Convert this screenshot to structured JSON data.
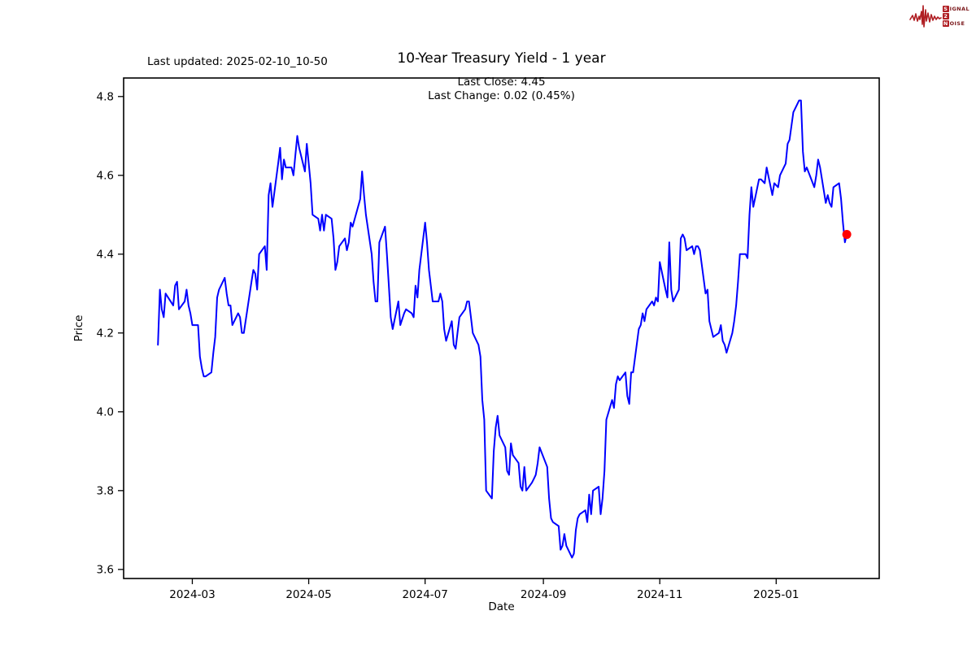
{
  "header": {
    "last_updated": "Last updated: 2025-02-10_10-50"
  },
  "logo": {
    "signal_box": "S",
    "signal_rest": "IGNAL",
    "middle_box": "2",
    "noise_box": "N",
    "noise_rest": "OISE",
    "color": "#b01e23"
  },
  "chart_data": {
    "type": "line",
    "title": "10-Year Treasury Yield - 1 year",
    "subtitle_lines": [
      "Last Close: 4.45",
      "Last Change: 0.02 (0.45%)"
    ],
    "xlabel": "Date",
    "ylabel": "Price",
    "grid": false,
    "legend": "none",
    "line_color": "#0000ff",
    "marker_color": "#ff0000",
    "xlim": [
      "2024-01-25",
      "2025-02-24"
    ],
    "ylim": [
      3.577,
      4.847
    ],
    "y_ticks": [
      {
        "label": "3.6",
        "value": 3.6
      },
      {
        "label": "3.8",
        "value": 3.8
      },
      {
        "label": "4.0",
        "value": 4.0
      },
      {
        "label": "4.2",
        "value": 4.2
      },
      {
        "label": "4.4",
        "value": 4.4
      },
      {
        "label": "4.6",
        "value": 4.6
      },
      {
        "label": "4.8",
        "value": 4.8
      }
    ],
    "x_ticks": [
      {
        "label": "2024-03",
        "date": "2024-03-01"
      },
      {
        "label": "2024-05",
        "date": "2024-05-01"
      },
      {
        "label": "2024-07",
        "date": "2024-07-01"
      },
      {
        "label": "2024-09",
        "date": "2024-09-01"
      },
      {
        "label": "2024-11",
        "date": "2024-11-01"
      },
      {
        "label": "2025-01",
        "date": "2025-01-01"
      }
    ],
    "series": [
      {
        "name": "10-Year Treasury Yield",
        "points": [
          [
            "2024-02-12",
            4.17
          ],
          [
            "2024-02-13",
            4.31
          ],
          [
            "2024-02-14",
            4.26
          ],
          [
            "2024-02-15",
            4.24
          ],
          [
            "2024-02-16",
            4.3
          ],
          [
            "2024-02-20",
            4.27
          ],
          [
            "2024-02-21",
            4.32
          ],
          [
            "2024-02-22",
            4.33
          ],
          [
            "2024-02-23",
            4.26
          ],
          [
            "2024-02-26",
            4.28
          ],
          [
            "2024-02-27",
            4.31
          ],
          [
            "2024-02-28",
            4.27
          ],
          [
            "2024-02-29",
            4.25
          ],
          [
            "2024-03-01",
            4.22
          ],
          [
            "2024-03-04",
            4.22
          ],
          [
            "2024-03-05",
            4.14
          ],
          [
            "2024-03-06",
            4.11
          ],
          [
            "2024-03-07",
            4.09
          ],
          [
            "2024-03-08",
            4.09
          ],
          [
            "2024-03-11",
            4.1
          ],
          [
            "2024-03-12",
            4.15
          ],
          [
            "2024-03-13",
            4.19
          ],
          [
            "2024-03-14",
            4.29
          ],
          [
            "2024-03-15",
            4.31
          ],
          [
            "2024-03-18",
            4.34
          ],
          [
            "2024-03-19",
            4.3
          ],
          [
            "2024-03-20",
            4.27
          ],
          [
            "2024-03-21",
            4.27
          ],
          [
            "2024-03-22",
            4.22
          ],
          [
            "2024-03-25",
            4.25
          ],
          [
            "2024-03-26",
            4.24
          ],
          [
            "2024-03-27",
            4.2
          ],
          [
            "2024-03-28",
            4.2
          ],
          [
            "2024-04-01",
            4.33
          ],
          [
            "2024-04-02",
            4.36
          ],
          [
            "2024-04-03",
            4.35
          ],
          [
            "2024-04-04",
            4.31
          ],
          [
            "2024-04-05",
            4.4
          ],
          [
            "2024-04-08",
            4.42
          ],
          [
            "2024-04-09",
            4.36
          ],
          [
            "2024-04-10",
            4.55
          ],
          [
            "2024-04-11",
            4.58
          ],
          [
            "2024-04-12",
            4.52
          ],
          [
            "2024-04-15",
            4.63
          ],
          [
            "2024-04-16",
            4.67
          ],
          [
            "2024-04-17",
            4.59
          ],
          [
            "2024-04-18",
            4.64
          ],
          [
            "2024-04-19",
            4.62
          ],
          [
            "2024-04-22",
            4.62
          ],
          [
            "2024-04-23",
            4.6
          ],
          [
            "2024-04-24",
            4.65
          ],
          [
            "2024-04-25",
            4.7
          ],
          [
            "2024-04-26",
            4.67
          ],
          [
            "2024-04-29",
            4.61
          ],
          [
            "2024-04-30",
            4.68
          ],
          [
            "2024-05-01",
            4.63
          ],
          [
            "2024-05-02",
            4.58
          ],
          [
            "2024-05-03",
            4.5
          ],
          [
            "2024-05-06",
            4.49
          ],
          [
            "2024-05-07",
            4.46
          ],
          [
            "2024-05-08",
            4.5
          ],
          [
            "2024-05-09",
            4.46
          ],
          [
            "2024-05-10",
            4.5
          ],
          [
            "2024-05-13",
            4.49
          ],
          [
            "2024-05-14",
            4.44
          ],
          [
            "2024-05-15",
            4.36
          ],
          [
            "2024-05-16",
            4.38
          ],
          [
            "2024-05-17",
            4.42
          ],
          [
            "2024-05-20",
            4.44
          ],
          [
            "2024-05-21",
            4.41
          ],
          [
            "2024-05-22",
            4.43
          ],
          [
            "2024-05-23",
            4.48
          ],
          [
            "2024-05-24",
            4.47
          ],
          [
            "2024-05-28",
            4.54
          ],
          [
            "2024-05-29",
            4.61
          ],
          [
            "2024-05-30",
            4.55
          ],
          [
            "2024-05-31",
            4.5
          ],
          [
            "2024-06-03",
            4.4
          ],
          [
            "2024-06-04",
            4.33
          ],
          [
            "2024-06-05",
            4.28
          ],
          [
            "2024-06-06",
            4.28
          ],
          [
            "2024-06-07",
            4.43
          ],
          [
            "2024-06-10",
            4.47
          ],
          [
            "2024-06-11",
            4.4
          ],
          [
            "2024-06-12",
            4.32
          ],
          [
            "2024-06-13",
            4.24
          ],
          [
            "2024-06-14",
            4.21
          ],
          [
            "2024-06-17",
            4.28
          ],
          [
            "2024-06-18",
            4.22
          ],
          [
            "2024-06-20",
            4.25
          ],
          [
            "2024-06-21",
            4.26
          ],
          [
            "2024-06-24",
            4.25
          ],
          [
            "2024-06-25",
            4.24
          ],
          [
            "2024-06-26",
            4.32
          ],
          [
            "2024-06-27",
            4.29
          ],
          [
            "2024-06-28",
            4.36
          ],
          [
            "2024-07-01",
            4.48
          ],
          [
            "2024-07-02",
            4.43
          ],
          [
            "2024-07-03",
            4.36
          ],
          [
            "2024-07-05",
            4.28
          ],
          [
            "2024-07-08",
            4.28
          ],
          [
            "2024-07-09",
            4.3
          ],
          [
            "2024-07-10",
            4.28
          ],
          [
            "2024-07-11",
            4.21
          ],
          [
            "2024-07-12",
            4.18
          ],
          [
            "2024-07-15",
            4.23
          ],
          [
            "2024-07-16",
            4.17
          ],
          [
            "2024-07-17",
            4.16
          ],
          [
            "2024-07-18",
            4.2
          ],
          [
            "2024-07-19",
            4.24
          ],
          [
            "2024-07-22",
            4.26
          ],
          [
            "2024-07-23",
            4.28
          ],
          [
            "2024-07-24",
            4.28
          ],
          [
            "2024-07-25",
            4.24
          ],
          [
            "2024-07-26",
            4.2
          ],
          [
            "2024-07-29",
            4.17
          ],
          [
            "2024-07-30",
            4.14
          ],
          [
            "2024-07-31",
            4.03
          ],
          [
            "2024-08-01",
            3.98
          ],
          [
            "2024-08-02",
            3.8
          ],
          [
            "2024-08-05",
            3.78
          ],
          [
            "2024-08-06",
            3.9
          ],
          [
            "2024-08-07",
            3.96
          ],
          [
            "2024-08-08",
            3.99
          ],
          [
            "2024-08-09",
            3.94
          ],
          [
            "2024-08-12",
            3.91
          ],
          [
            "2024-08-13",
            3.85
          ],
          [
            "2024-08-14",
            3.84
          ],
          [
            "2024-08-15",
            3.92
          ],
          [
            "2024-08-16",
            3.89
          ],
          [
            "2024-08-19",
            3.87
          ],
          [
            "2024-08-20",
            3.81
          ],
          [
            "2024-08-21",
            3.8
          ],
          [
            "2024-08-22",
            3.86
          ],
          [
            "2024-08-23",
            3.8
          ],
          [
            "2024-08-26",
            3.82
          ],
          [
            "2024-08-27",
            3.83
          ],
          [
            "2024-08-28",
            3.84
          ],
          [
            "2024-08-29",
            3.87
          ],
          [
            "2024-08-30",
            3.91
          ],
          [
            "2024-09-03",
            3.86
          ],
          [
            "2024-09-04",
            3.78
          ],
          [
            "2024-09-05",
            3.73
          ],
          [
            "2024-09-06",
            3.72
          ],
          [
            "2024-09-09",
            3.71
          ],
          [
            "2024-09-10",
            3.65
          ],
          [
            "2024-09-11",
            3.66
          ],
          [
            "2024-09-12",
            3.69
          ],
          [
            "2024-09-13",
            3.66
          ],
          [
            "2024-09-16",
            3.63
          ],
          [
            "2024-09-17",
            3.64
          ],
          [
            "2024-09-18",
            3.7
          ],
          [
            "2024-09-19",
            3.73
          ],
          [
            "2024-09-20",
            3.74
          ],
          [
            "2024-09-23",
            3.75
          ],
          [
            "2024-09-24",
            3.72
          ],
          [
            "2024-09-25",
            3.79
          ],
          [
            "2024-09-26",
            3.74
          ],
          [
            "2024-09-27",
            3.8
          ],
          [
            "2024-09-30",
            3.81
          ],
          [
            "2024-10-01",
            3.74
          ],
          [
            "2024-10-02",
            3.78
          ],
          [
            "2024-10-03",
            3.85
          ],
          [
            "2024-10-04",
            3.98
          ],
          [
            "2024-10-07",
            4.03
          ],
          [
            "2024-10-08",
            4.01
          ],
          [
            "2024-10-09",
            4.07
          ],
          [
            "2024-10-10",
            4.09
          ],
          [
            "2024-10-11",
            4.08
          ],
          [
            "2024-10-14",
            4.1
          ],
          [
            "2024-10-15",
            4.04
          ],
          [
            "2024-10-16",
            4.02
          ],
          [
            "2024-10-17",
            4.1
          ],
          [
            "2024-10-18",
            4.1
          ],
          [
            "2024-10-21",
            4.21
          ],
          [
            "2024-10-22",
            4.22
          ],
          [
            "2024-10-23",
            4.25
          ],
          [
            "2024-10-24",
            4.23
          ],
          [
            "2024-10-25",
            4.26
          ],
          [
            "2024-10-28",
            4.28
          ],
          [
            "2024-10-29",
            4.27
          ],
          [
            "2024-10-30",
            4.29
          ],
          [
            "2024-10-31",
            4.28
          ],
          [
            "2024-11-01",
            4.38
          ],
          [
            "2024-11-04",
            4.31
          ],
          [
            "2024-11-05",
            4.29
          ],
          [
            "2024-11-06",
            4.43
          ],
          [
            "2024-11-07",
            4.31
          ],
          [
            "2024-11-08",
            4.28
          ],
          [
            "2024-11-11",
            4.31
          ],
          [
            "2024-11-12",
            4.44
          ],
          [
            "2024-11-13",
            4.45
          ],
          [
            "2024-11-14",
            4.44
          ],
          [
            "2024-11-15",
            4.41
          ],
          [
            "2024-11-18",
            4.42
          ],
          [
            "2024-11-19",
            4.4
          ],
          [
            "2024-11-20",
            4.42
          ],
          [
            "2024-11-21",
            4.42
          ],
          [
            "2024-11-22",
            4.41
          ],
          [
            "2024-11-25",
            4.3
          ],
          [
            "2024-11-26",
            4.31
          ],
          [
            "2024-11-27",
            4.23
          ],
          [
            "2024-11-29",
            4.19
          ],
          [
            "2024-12-02",
            4.2
          ],
          [
            "2024-12-03",
            4.22
          ],
          [
            "2024-12-04",
            4.18
          ],
          [
            "2024-12-05",
            4.17
          ],
          [
            "2024-12-06",
            4.15
          ],
          [
            "2024-12-09",
            4.2
          ],
          [
            "2024-12-10",
            4.23
          ],
          [
            "2024-12-11",
            4.27
          ],
          [
            "2024-12-12",
            4.33
          ],
          [
            "2024-12-13",
            4.4
          ],
          [
            "2024-12-16",
            4.4
          ],
          [
            "2024-12-17",
            4.39
          ],
          [
            "2024-12-18",
            4.5
          ],
          [
            "2024-12-19",
            4.57
          ],
          [
            "2024-12-20",
            4.52
          ],
          [
            "2024-12-23",
            4.59
          ],
          [
            "2024-12-24",
            4.59
          ],
          [
            "2024-12-26",
            4.58
          ],
          [
            "2024-12-27",
            4.62
          ],
          [
            "2024-12-30",
            4.55
          ],
          [
            "2024-12-31",
            4.58
          ],
          [
            "2025-01-02",
            4.57
          ],
          [
            "2025-01-03",
            4.6
          ],
          [
            "2025-01-06",
            4.63
          ],
          [
            "2025-01-07",
            4.68
          ],
          [
            "2025-01-08",
            4.69
          ],
          [
            "2025-01-10",
            4.76
          ],
          [
            "2025-01-13",
            4.79
          ],
          [
            "2025-01-14",
            4.79
          ],
          [
            "2025-01-15",
            4.66
          ],
          [
            "2025-01-16",
            4.61
          ],
          [
            "2025-01-17",
            4.62
          ],
          [
            "2025-01-21",
            4.57
          ],
          [
            "2025-01-22",
            4.6
          ],
          [
            "2025-01-23",
            4.64
          ],
          [
            "2025-01-24",
            4.62
          ],
          [
            "2025-01-27",
            4.53
          ],
          [
            "2025-01-28",
            4.55
          ],
          [
            "2025-01-29",
            4.53
          ],
          [
            "2025-01-30",
            4.52
          ],
          [
            "2025-01-31",
            4.57
          ],
          [
            "2025-02-03",
            4.58
          ],
          [
            "2025-02-04",
            4.54
          ],
          [
            "2025-02-05",
            4.48
          ],
          [
            "2025-02-06",
            4.43
          ],
          [
            "2025-02-07",
            4.45
          ]
        ]
      }
    ],
    "last_point": {
      "date": "2025-02-07",
      "value": 4.45
    }
  }
}
